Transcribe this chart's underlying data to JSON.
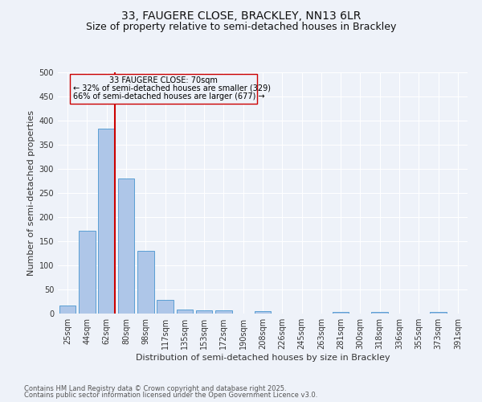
{
  "title": "33, FAUGERE CLOSE, BRACKLEY, NN13 6LR",
  "subtitle": "Size of property relative to semi-detached houses in Brackley",
  "xlabel": "Distribution of semi-detached houses by size in Brackley",
  "ylabel": "Number of semi-detached properties",
  "bar_labels": [
    "25sqm",
    "44sqm",
    "62sqm",
    "80sqm",
    "98sqm",
    "117sqm",
    "135sqm",
    "153sqm",
    "172sqm",
    "190sqm",
    "208sqm",
    "226sqm",
    "245sqm",
    "263sqm",
    "281sqm",
    "300sqm",
    "318sqm",
    "336sqm",
    "355sqm",
    "373sqm",
    "391sqm"
  ],
  "bar_values": [
    17,
    172,
    383,
    280,
    130,
    29,
    8,
    6,
    6,
    0,
    5,
    0,
    0,
    0,
    4,
    0,
    4,
    0,
    0,
    3,
    0
  ],
  "bar_color": "#aec6e8",
  "bar_edge_color": "#5a9fd4",
  "reference_line_label": "33 FAUGERE CLOSE: 70sqm",
  "annotation_smaller": "← 32% of semi-detached houses are smaller (329)",
  "annotation_larger": "66% of semi-detached houses are larger (677) →",
  "ref_line_color": "#cc0000",
  "box_color": "#cc0000",
  "ylim": [
    0,
    500
  ],
  "yticks": [
    0,
    50,
    100,
    150,
    200,
    250,
    300,
    350,
    400,
    450,
    500
  ],
  "footnote1": "Contains HM Land Registry data © Crown copyright and database right 2025.",
  "footnote2": "Contains public sector information licensed under the Open Government Licence v3.0.",
  "bg_color": "#eef2f9",
  "grid_color": "#ffffff",
  "title_fontsize": 10,
  "subtitle_fontsize": 9,
  "axis_label_fontsize": 8,
  "tick_fontsize": 7,
  "annotation_fontsize": 7,
  "footnote_fontsize": 6
}
